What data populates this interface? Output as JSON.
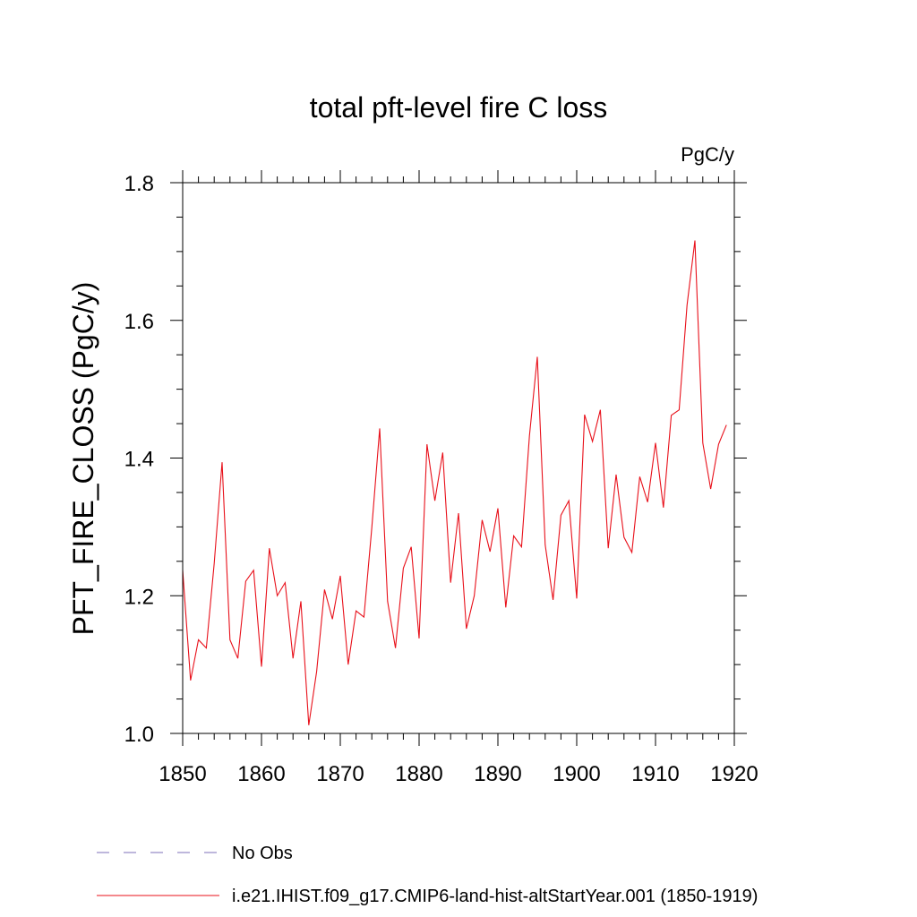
{
  "chart_data": {
    "type": "line",
    "title": "total pft-level fire C loss",
    "units_label": "PgC/y",
    "ylabel": "PFT_FIRE_CLOSS  (PgC/y)",
    "xlabel": "",
    "xlim": [
      1850,
      1920
    ],
    "ylim": [
      1.0,
      1.8
    ],
    "x_major_ticks": [
      1850,
      1860,
      1870,
      1880,
      1890,
      1900,
      1910,
      1920
    ],
    "x_tick_labels": [
      "1850",
      "1860",
      "1870",
      "1880",
      "1890",
      "1900",
      "1910",
      "1920"
    ],
    "y_major_ticks": [
      1.0,
      1.2,
      1.4,
      1.6,
      1.8
    ],
    "y_tick_labels": [
      "1.0",
      "1.2",
      "1.4",
      "1.6",
      "1.8"
    ],
    "x_minor_step": 2,
    "y_minor_step": 0.05,
    "grid": false,
    "legend_position": "bottom-left",
    "series": [
      {
        "name": "i.e21.IHIST.f09_g17.CMIP6-land-hist-altStartYear.001 (1850-1919)",
        "color": "#e8101a",
        "style": "solid",
        "x": [
          1850,
          1851,
          1852,
          1853,
          1854,
          1855,
          1856,
          1857,
          1858,
          1859,
          1860,
          1861,
          1862,
          1863,
          1864,
          1865,
          1866,
          1867,
          1868,
          1869,
          1870,
          1871,
          1872,
          1873,
          1874,
          1875,
          1876,
          1877,
          1878,
          1879,
          1880,
          1881,
          1882,
          1883,
          1884,
          1885,
          1886,
          1887,
          1888,
          1889,
          1890,
          1891,
          1892,
          1893,
          1894,
          1895,
          1896,
          1897,
          1898,
          1899,
          1900,
          1901,
          1902,
          1903,
          1904,
          1905,
          1906,
          1907,
          1908,
          1909,
          1910,
          1911,
          1912,
          1913,
          1914,
          1915,
          1916,
          1917,
          1918,
          1919
        ],
        "values": [
          1.237,
          1.077,
          1.136,
          1.124,
          1.247,
          1.394,
          1.136,
          1.109,
          1.221,
          1.237,
          1.097,
          1.269,
          1.2,
          1.219,
          1.109,
          1.192,
          1.012,
          1.09,
          1.209,
          1.166,
          1.229,
          1.1,
          1.178,
          1.169,
          1.299,
          1.443,
          1.192,
          1.124,
          1.24,
          1.271,
          1.138,
          1.42,
          1.338,
          1.408,
          1.219,
          1.32,
          1.152,
          1.2,
          1.31,
          1.264,
          1.327,
          1.183,
          1.287,
          1.271,
          1.432,
          1.547,
          1.274,
          1.194,
          1.317,
          1.338,
          1.196,
          1.463,
          1.424,
          1.47,
          1.269,
          1.376,
          1.285,
          1.263,
          1.373,
          1.336,
          1.422,
          1.328,
          1.462,
          1.47,
          1.622,
          1.716,
          1.422,
          1.355,
          1.42,
          1.448
        ]
      }
    ],
    "legend": [
      {
        "label": "No Obs",
        "color": "#7d6fb8",
        "style": "dashed"
      },
      {
        "label": "i.e21.IHIST.f09_g17.CMIP6-land-hist-altStartYear.001 (1850-1919)",
        "color": "#e8101a",
        "style": "solid"
      }
    ]
  }
}
